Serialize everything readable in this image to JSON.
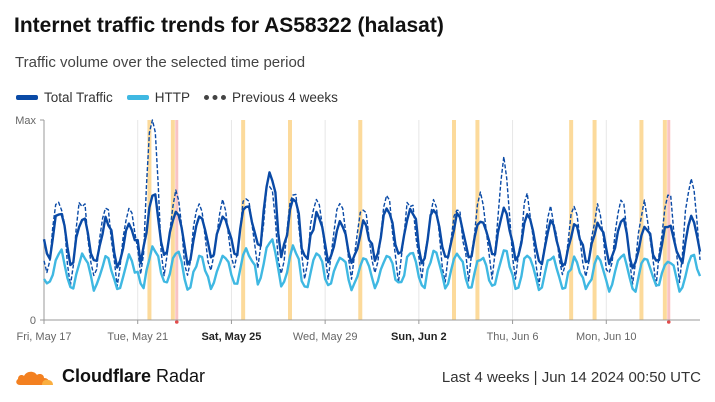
{
  "header": {
    "title": "Internet traffic trends for AS58322 (halasat)",
    "subtitle": "Traffic volume over the selected time period"
  },
  "legend": {
    "items": [
      {
        "label": "Total Traffic",
        "color": "#0a4aa6",
        "style": "solid"
      },
      {
        "label": "HTTP",
        "color": "#3fb8e2",
        "style": "solid"
      },
      {
        "label": "Previous 4 weeks",
        "color": "#444444",
        "style": "dashed"
      }
    ]
  },
  "footer": {
    "brand_bold": "Cloudflare",
    "brand_light": " Radar",
    "range": "Last 4 weeks",
    "separator": "|",
    "timestamp": "Jun 14 2024 00:50 UTC"
  },
  "chart_data": {
    "type": "line",
    "title": "Internet traffic trends for AS58322 (halasat)",
    "subtitle": "Traffic volume over the selected time period",
    "y_ticks": [
      "Max",
      "0"
    ],
    "ylim": [
      0,
      1
    ],
    "x_start": "2024-05-17",
    "x_end": "2024-06-14",
    "x_ticks": [
      {
        "label": "Fri, May 17",
        "date": "2024-05-17",
        "bold": false
      },
      {
        "label": "Tue, May 21",
        "date": "2024-05-21",
        "bold": false
      },
      {
        "label": "Sat, May 25",
        "date": "2024-05-25",
        "bold": true
      },
      {
        "label": "Wed, May 29",
        "date": "2024-05-29",
        "bold": false
      },
      {
        "label": "Sun, Jun 2",
        "date": "2024-06-02",
        "bold": true
      },
      {
        "label": "Thu, Jun 6",
        "date": "2024-06-06",
        "bold": false
      },
      {
        "label": "Mon, Jun 10",
        "date": "2024-06-10",
        "bold": false
      }
    ],
    "grid": "vertical",
    "legend_position": "top-left",
    "series": [
      {
        "name": "Total Traffic",
        "color": "#0a4aa6",
        "daily_peak": [
          0.55,
          0.52,
          0.5,
          0.48,
          0.62,
          0.55,
          0.5,
          0.53,
          0.58,
          0.75,
          0.6,
          0.52,
          0.5,
          0.48,
          0.55,
          0.57,
          0.55,
          0.52,
          0.5,
          0.55,
          0.52,
          0.48,
          0.46,
          0.48,
          0.5,
          0.47,
          0.49,
          0.5
        ],
        "daily_trough": [
          0.3,
          0.28,
          0.28,
          0.27,
          0.3,
          0.32,
          0.29,
          0.3,
          0.31,
          0.33,
          0.32,
          0.3,
          0.3,
          0.29,
          0.31,
          0.3,
          0.3,
          0.29,
          0.3,
          0.3,
          0.29,
          0.28,
          0.28,
          0.29,
          0.28,
          0.27,
          0.28,
          0.28
        ]
      },
      {
        "name": "HTTP",
        "color": "#3fb8e2",
        "daily_peak": [
          0.35,
          0.33,
          0.32,
          0.31,
          0.36,
          0.35,
          0.32,
          0.33,
          0.35,
          0.4,
          0.36,
          0.33,
          0.32,
          0.31,
          0.34,
          0.35,
          0.34,
          0.33,
          0.32,
          0.34,
          0.33,
          0.31,
          0.3,
          0.31,
          0.32,
          0.3,
          0.31,
          0.32
        ],
        "daily_trough": [
          0.16,
          0.15,
          0.15,
          0.14,
          0.16,
          0.17,
          0.15,
          0.16,
          0.16,
          0.18,
          0.17,
          0.16,
          0.16,
          0.15,
          0.16,
          0.16,
          0.16,
          0.15,
          0.16,
          0.16,
          0.15,
          0.15,
          0.15,
          0.15,
          0.15,
          0.14,
          0.15,
          0.15
        ]
      },
      {
        "name": "Previous 4 weeks",
        "color": "#0a4aa6",
        "style": "dashed",
        "daily_peak": [
          0.62,
          0.6,
          0.58,
          0.57,
          1.0,
          0.62,
          0.6,
          0.61,
          0.63,
          0.7,
          0.66,
          0.62,
          0.6,
          0.58,
          0.62,
          0.6,
          0.58,
          0.56,
          0.62,
          0.8,
          0.6,
          0.55,
          0.54,
          0.56,
          0.6,
          0.57,
          0.65,
          0.74
        ],
        "daily_trough": [
          0.22,
          0.2,
          0.2,
          0.19,
          0.22,
          0.24,
          0.21,
          0.22,
          0.23,
          0.25,
          0.24,
          0.22,
          0.22,
          0.21,
          0.23,
          0.22,
          0.22,
          0.21,
          0.22,
          0.22,
          0.21,
          0.2,
          0.2,
          0.21,
          0.2,
          0.19,
          0.2,
          0.2
        ]
      }
    ],
    "outage_markers": {
      "orange_dates": [
        "2024-05-21",
        "2024-05-22",
        "2024-05-25",
        "2024-05-27",
        "2024-05-30",
        "2024-06-03",
        "2024-06-04",
        "2024-06-08",
        "2024-06-09",
        "2024-06-11",
        "2024-06-12"
      ],
      "red_dates": [
        "2024-05-22",
        "2024-06-12"
      ]
    }
  }
}
